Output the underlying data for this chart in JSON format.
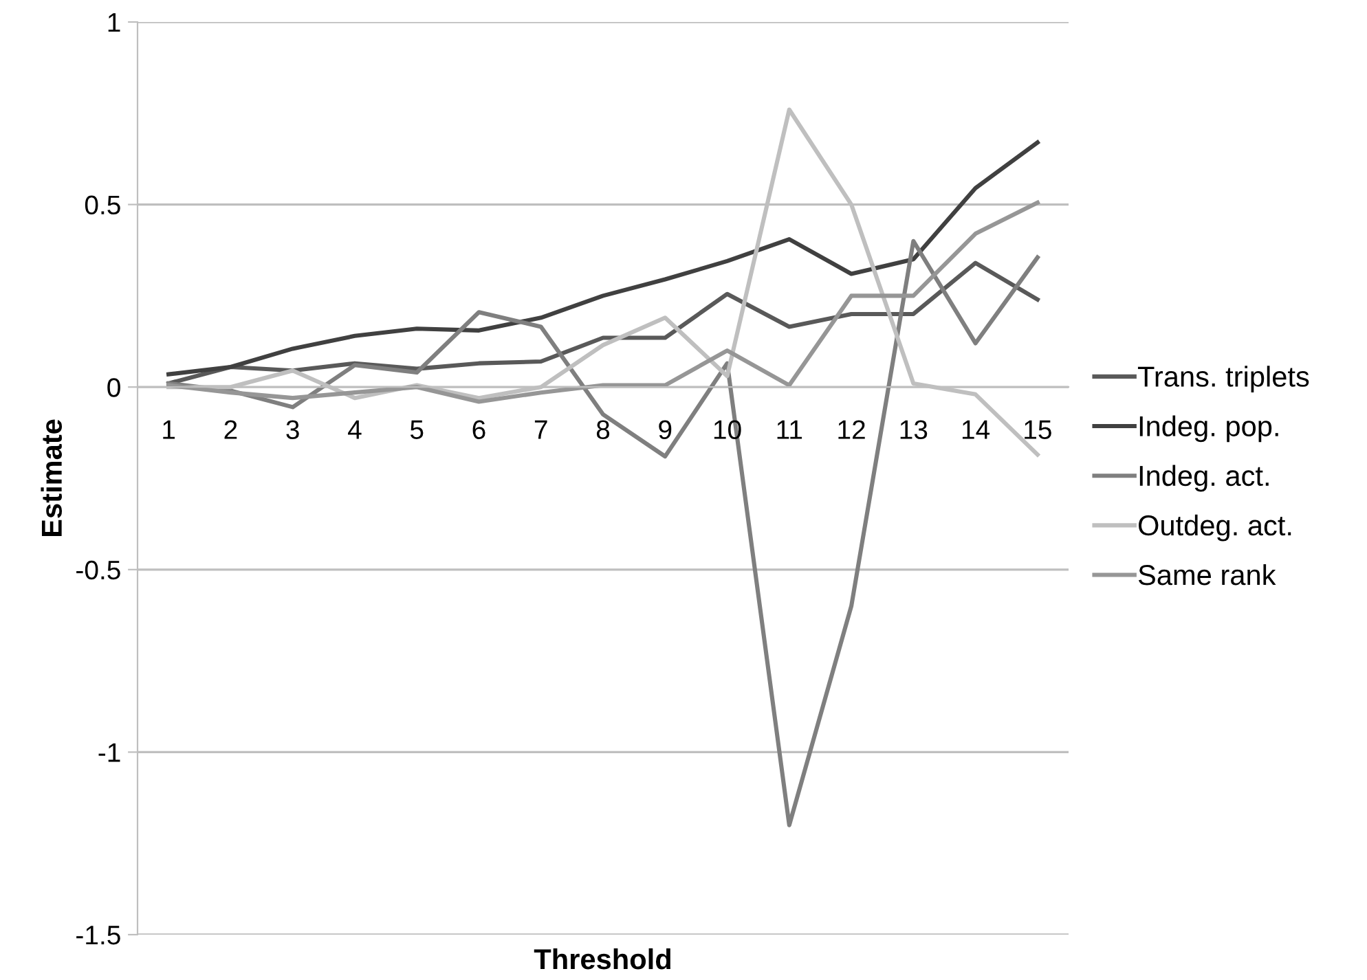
{
  "chart_data": {
    "type": "line",
    "xlabel": "Threshold",
    "ylabel": "Estimate",
    "categories": [
      "1",
      "2",
      "3",
      "4",
      "5",
      "6",
      "7",
      "8",
      "9",
      "10",
      "11",
      "12",
      "13",
      "14",
      "15"
    ],
    "series": [
      {
        "name": "Trans. triplets",
        "color": "#595959",
        "values": [
          0.01,
          0.055,
          0.045,
          0.065,
          0.05,
          0.065,
          0.07,
          0.135,
          0.135,
          0.255,
          0.165,
          0.2,
          0.2,
          0.34,
          0.24
        ]
      },
      {
        "name": "Indeg. pop.",
        "color": "#404040",
        "values": [
          0.035,
          0.055,
          0.105,
          0.14,
          0.16,
          0.155,
          0.19,
          0.25,
          0.295,
          0.345,
          0.405,
          0.31,
          0.35,
          0.545,
          0.67
        ]
      },
      {
        "name": "Indeg. act.",
        "color": "#7f7f7f",
        "values": [
          0.01,
          -0.01,
          -0.055,
          0.06,
          0.04,
          0.205,
          0.165,
          -0.075,
          -0.19,
          0.065,
          -1.2,
          -0.6,
          0.4,
          0.12,
          0.355
        ]
      },
      {
        "name": "Outdeg. act.",
        "color": "#bfbfbf",
        "values": [
          0,
          0,
          0.045,
          -0.03,
          0.005,
          -0.03,
          0,
          0.115,
          0.19,
          0.03,
          0.76,
          0.5,
          0.01,
          -0.02,
          -0.185
        ]
      },
      {
        "name": "Same rank",
        "color": "#969696",
        "values": [
          0.005,
          -0.015,
          -0.03,
          -0.015,
          0,
          -0.04,
          -0.015,
          0.005,
          0.005,
          0.1,
          0.005,
          0.25,
          0.25,
          0.42,
          0.505
        ]
      }
    ],
    "ylim": [
      -1.5,
      1
    ],
    "yticks": [
      -1.5,
      -1,
      -0.5,
      0,
      0.5,
      1
    ],
    "grid": "y",
    "legend": "right",
    "marker": "none",
    "line_style": "solid"
  }
}
